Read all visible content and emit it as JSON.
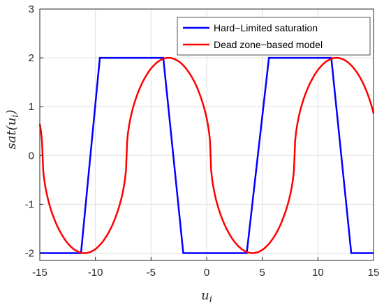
{
  "chart_data": {
    "type": "line",
    "title": "",
    "xlabel": {
      "base": "u",
      "sub": "i"
    },
    "ylabel": {
      "prefix": "sat(",
      "base": "u",
      "sub": "i",
      "suffix": ")"
    },
    "xlim": [
      -15,
      15
    ],
    "ylim": [
      -2.15,
      3
    ],
    "xticks": [
      -15,
      -10,
      -5,
      0,
      5,
      10,
      15
    ],
    "yticks": [
      -2,
      -1,
      0,
      1,
      2,
      3
    ],
    "xtick_labels": [
      "-15",
      "-10",
      "-5",
      "0",
      "5",
      "10",
      "15"
    ],
    "ytick_labels": [
      "-2",
      "-1",
      "0",
      "1",
      "2",
      "3"
    ],
    "grid": true,
    "legend_position": "top-right",
    "series": [
      {
        "name": "Hard−Limited saturation",
        "color": "#0000ff",
        "x": [
          -15,
          -11.3,
          -9.6,
          -3.9,
          -2.1,
          3.6,
          5.6,
          11.2,
          13.0,
          15
        ],
        "y": [
          -2,
          -2,
          2,
          2,
          -2,
          -2,
          2,
          2,
          -2,
          -2
        ]
      },
      {
        "name": "Dead zone−based model",
        "color": "#ff0000",
        "period": 15.1,
        "phase": -7.2,
        "amplitude": 2,
        "shape_exponent": 0.5
      }
    ]
  }
}
